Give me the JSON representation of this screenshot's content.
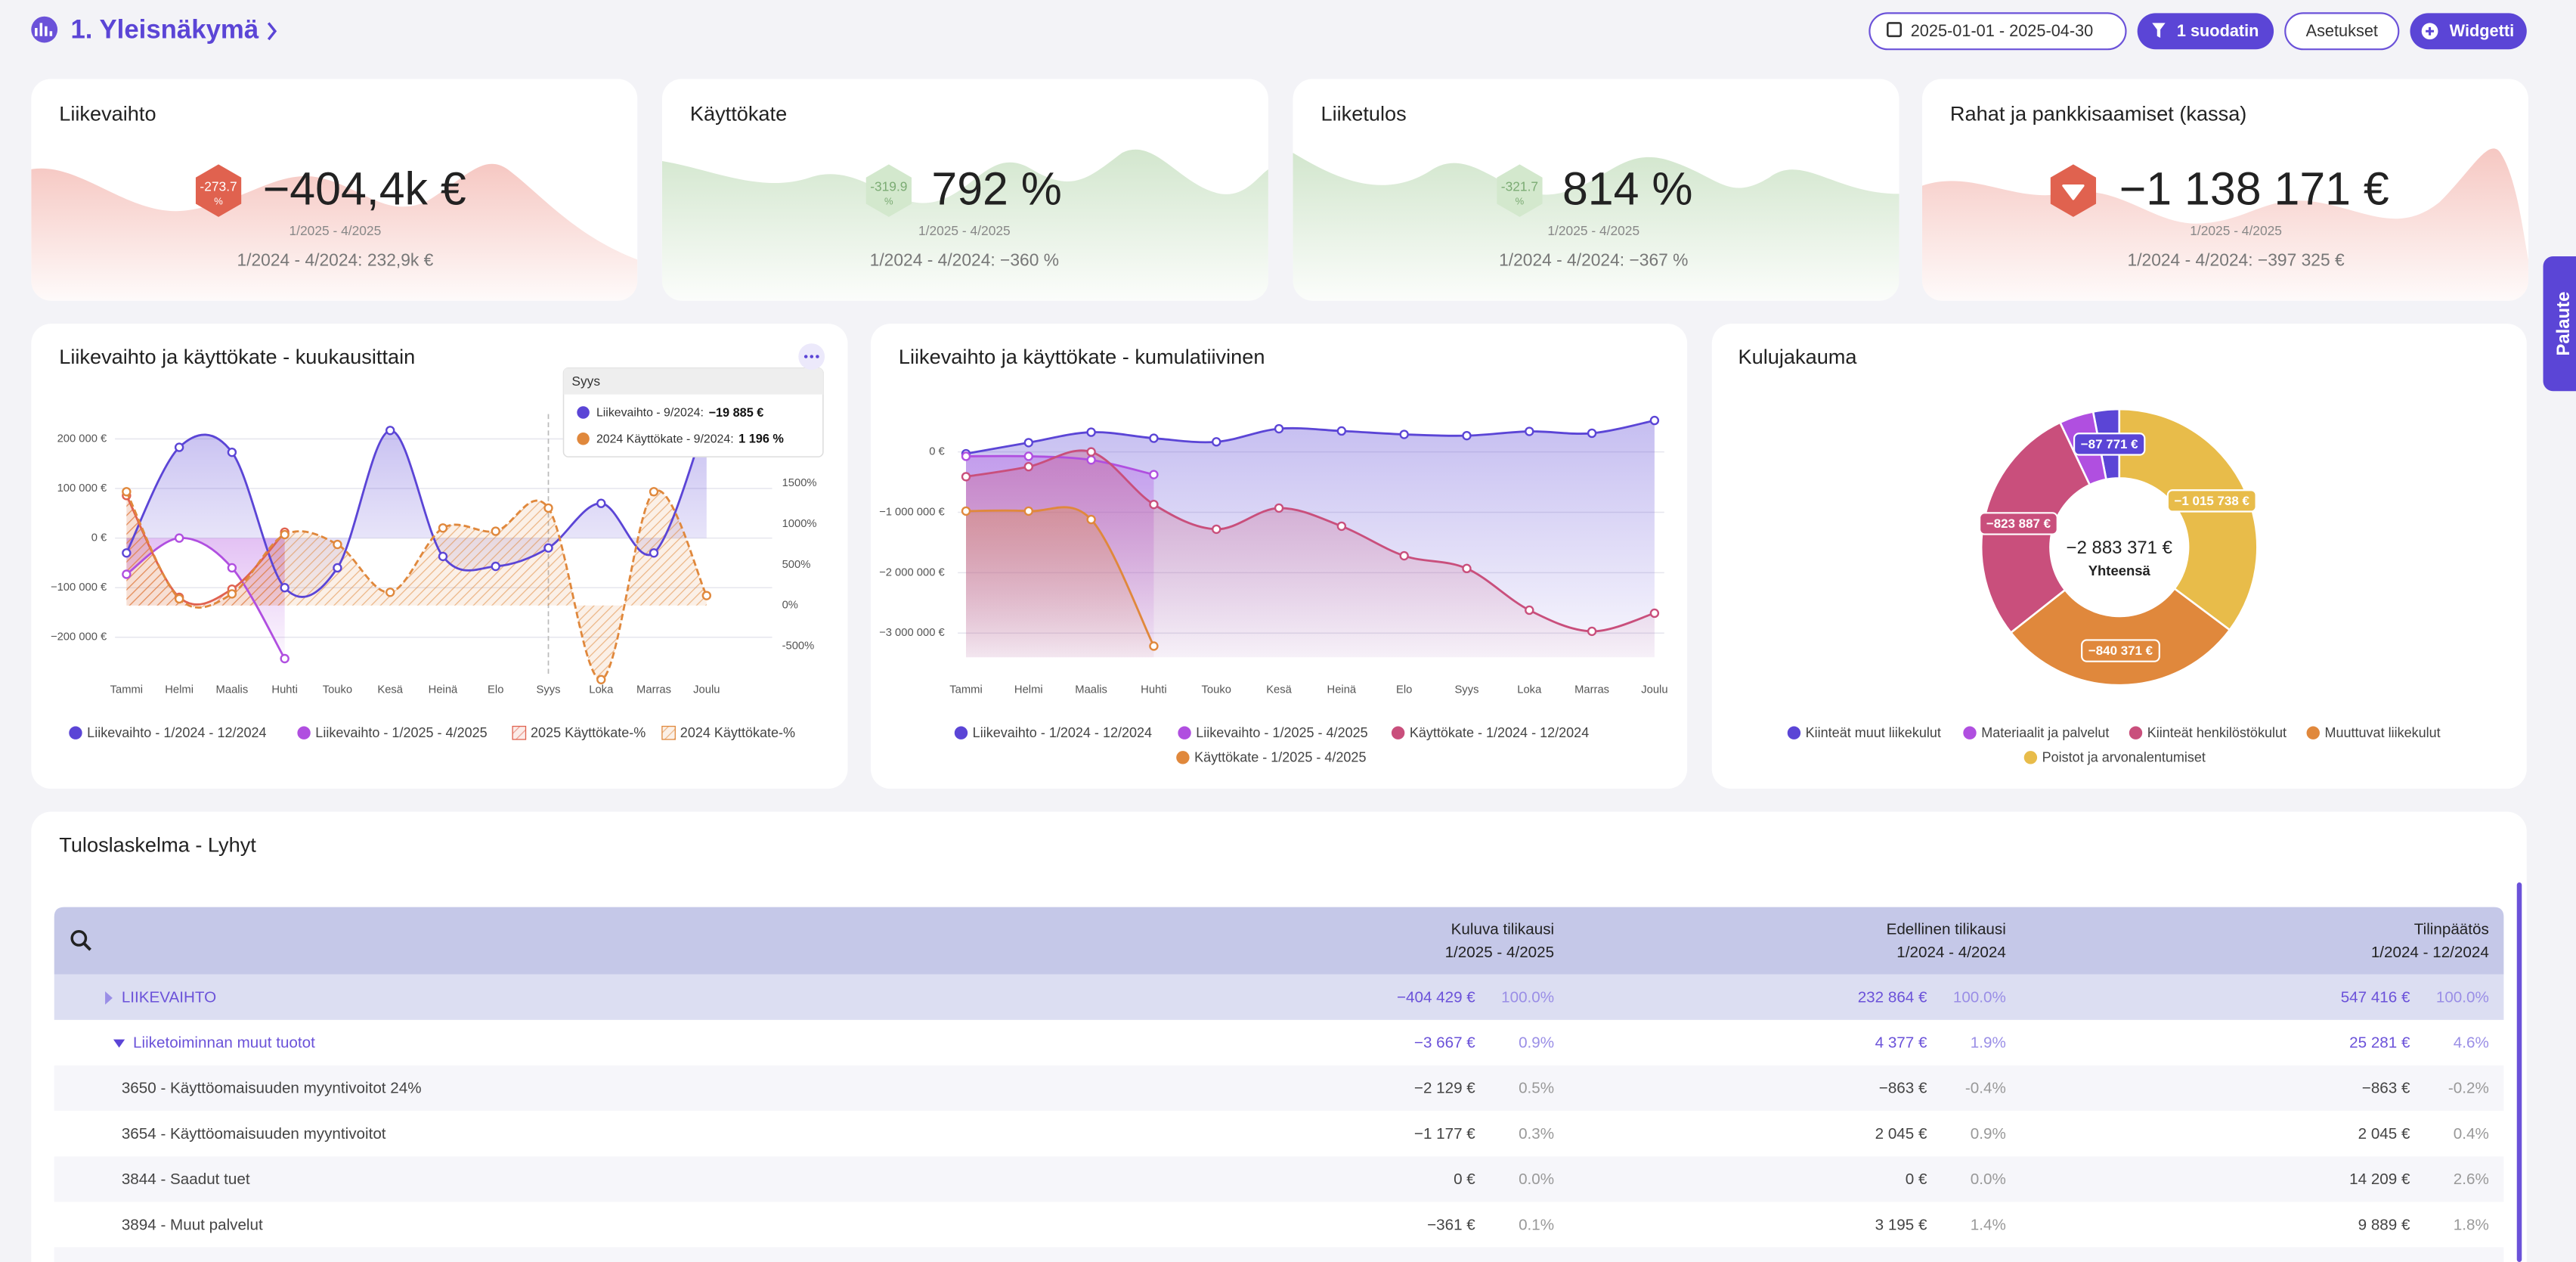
{
  "header": {
    "title": "1. Yleisnäkymä",
    "date_range": "2025-01-01 - 2025-04-30",
    "filter_button": "1 suodatin",
    "settings_button": "Asetukset",
    "widget_button": "Widgetti",
    "feedback_tab": "Palaute"
  },
  "kpi_cards": [
    {
      "title": "Liikevaihto",
      "badge": "-273.7",
      "badge_unit": "%",
      "value": "−404,4k €",
      "period": "1/2025 - 4/2025",
      "comparison": "1/2024 - 4/2024: 232,9k €",
      "color": "#f0a39a",
      "badge_color": "#e0624f",
      "badge_text_color": "#ffffff"
    },
    {
      "title": "Käyttökate",
      "badge": "-319.9",
      "badge_unit": "%",
      "value": "792 %",
      "period": "1/2025 - 4/2025",
      "comparison": "1/2024 - 4/2024: −360 %",
      "color": "#b5d6ad",
      "badge_color": "#d3e8cd",
      "badge_text_color": "#7bab73"
    },
    {
      "title": "Liiketulos",
      "badge": "-321.7",
      "badge_unit": "%",
      "value": "814 %",
      "period": "1/2025 - 4/2025",
      "comparison": "1/2024 - 4/2024: −367 %",
      "color": "#b5d6ad",
      "badge_color": "#d3e8cd",
      "badge_text_color": "#7bab73"
    },
    {
      "title": "Rahat ja pankkisaamiset (kassa)",
      "badge_icon": "arrow-down",
      "value": "−1 138 171 €",
      "period": "1/2025 - 4/2025",
      "comparison": "1/2024 - 4/2024: −397 325 €",
      "color": "#f0a39a",
      "badge_color": "#e0624f",
      "badge_text_color": "#ffffff"
    }
  ],
  "charts": [
    {
      "type": "line",
      "title": "Liikevaihto ja käyttökate - kuukausittain",
      "categories": [
        "Tammi",
        "Helmi",
        "Maalis",
        "Huhti",
        "Touko",
        "Kesä",
        "Heinä",
        "Elo",
        "Syys",
        "Loka",
        "Marras",
        "Joulu"
      ],
      "series": [
        {
          "name": "Liikevaihto - 1/2024 - 12/2024",
          "color": "#5b45d6",
          "values": [
            -30000,
            183000,
            173000,
            -100000,
            -60000,
            217000,
            -37000,
            -57000,
            -19885,
            70000,
            -30000,
            240000
          ]
        },
        {
          "name": "Liikevaihto - 1/2025 - 4/2025",
          "color": "#b04fe0",
          "values": [
            -73000,
            0,
            -60000,
            -243000,
            null,
            null,
            null,
            null,
            null,
            null,
            null,
            null
          ]
        },
        {
          "name": "2025 Käyttökate-%",
          "color": "#e0624f",
          "axis": "y2",
          "hatched": true,
          "values": [
            1350,
            100,
            200,
            900,
            null,
            null,
            null,
            null,
            null,
            null,
            null,
            null
          ]
        },
        {
          "name": "2024 Käyttökate-%",
          "color": "#e0883c",
          "axis": "y2",
          "hatched": true,
          "dashed": true,
          "values": [
            1397,
            81,
            142,
            870,
            749,
            162,
            951,
            911,
            1196,
            -911,
            1397,
            121
          ]
        }
      ],
      "ylim": [
        -300000,
        250000
      ],
      "yticks": [
        {
          "value": 200000,
          "label": "200 000 €"
        },
        {
          "value": 100000,
          "label": "100 000 €"
        },
        {
          "value": 0,
          "label": "0 €"
        },
        {
          "value": -100000,
          "label": "−100 000 €"
        },
        {
          "value": -200000,
          "label": "−200 000 €"
        }
      ],
      "y2lim": [
        -1000,
        2350
      ],
      "y2ticks": [
        {
          "value": 1500,
          "label": "1500%"
        },
        {
          "value": 1000,
          "label": "1000%"
        },
        {
          "value": 500,
          "label": "500%"
        },
        {
          "value": 0,
          "label": "0%"
        },
        {
          "value": -500,
          "label": "-500%"
        }
      ],
      "grid": true,
      "tooltip": {
        "title": "Syys",
        "rows": [
          {
            "label": "Liikevaihto - 9/2024:",
            "value": "−19 885 €",
            "color": "#5b45d6"
          },
          {
            "label": "2024 Käyttökate - 9/2024:",
            "value": "1 196 %",
            "color": "#e0883c"
          }
        ]
      }
    },
    {
      "type": "line",
      "title": "Liikevaihto ja käyttökate - kumulatiivinen",
      "categories": [
        "Tammi",
        "Helmi",
        "Maalis",
        "Huhti",
        "Touko",
        "Kesä",
        "Heinä",
        "Elo",
        "Syys",
        "Loka",
        "Marras",
        "Joulu"
      ],
      "series": [
        {
          "name": "Liikevaihto - 1/2024 - 12/2024",
          "color": "#5b45d6",
          "values": [
            -30000,
            153000,
            326000,
            226000,
            166000,
            383000,
            346000,
            289000,
            269000,
            339000,
            309000,
            520000
          ]
        },
        {
          "name": "Liikevaihto - 1/2025 - 4/2025",
          "color": "#b04fe0",
          "values": [
            -73000,
            -73000,
            -133000,
            -376000,
            null,
            null,
            null,
            null,
            null,
            null,
            null,
            null
          ]
        },
        {
          "name": "Käyttökate - 1/2024 - 12/2024",
          "color": "#c94f7c",
          "values": [
            -410000,
            -245000,
            0,
            -870000,
            -1280000,
            -930000,
            -1230000,
            -1720000,
            -1930000,
            -2620000,
            -2970000,
            -2670000
          ]
        },
        {
          "name": "Käyttökate - 1/2025 - 4/2025",
          "color": "#e0883c",
          "values": [
            -980000,
            -980000,
            -1120000,
            -3215000,
            null,
            null,
            null,
            null,
            null,
            null,
            null,
            null
          ]
        }
      ],
      "ylim": [
        -3400000,
        680000
      ],
      "yticks": [
        {
          "value": 0,
          "label": "0 €"
        },
        {
          "value": -1000000,
          "label": "−1 000 000 €"
        },
        {
          "value": -2000000,
          "label": "−2 000 000 €"
        },
        {
          "value": -3000000,
          "label": "−3 000 000 €"
        }
      ],
      "grid": true
    },
    {
      "type": "donut",
      "title": "Kulujakauma",
      "total_label": "−2 883 371 €",
      "total_caption": "Yhteensä",
      "categories": [
        "Kiinteät muut liikekulut",
        "Materiaalit ja palvelut",
        "Kiinteät henkilöstökulut",
        "Muuttuvat liikekulut",
        "Poistot ja arvonalentumiset"
      ],
      "values": [
        -87771,
        -115604,
        -823887,
        -840371,
        -1015738
      ],
      "value_labels": [
        "−87 771 €",
        null,
        "−823 887 €",
        "−840 371 €",
        "−1 015 738 €"
      ],
      "colors": [
        "#5b45d6",
        "#b04fe0",
        "#c94f7c",
        "#e0883c",
        "#e8bc4a"
      ]
    }
  ],
  "table": {
    "title": "Tuloslaskelma - Lyhyt",
    "columns": [
      {
        "name": "Kuluva tilikausi",
        "period": "1/2025 - 4/2025"
      },
      {
        "name": "Edellinen tilikausi",
        "period": "1/2024 - 4/2024"
      },
      {
        "name": "Tilinpäätös",
        "period": "1/2024 - 12/2024"
      }
    ],
    "rows": [
      {
        "label": "LIIKEVAIHTO",
        "style": "group",
        "cells": [
          "−404 429 €",
          "100.0%",
          "232 864 €",
          "100.0%",
          "547 416 €",
          "100.0%"
        ]
      },
      {
        "label": "Liiketoiminnan muut tuotot",
        "style": "subgroup",
        "cells": [
          "−3 667 €",
          "0.9%",
          "4 377 €",
          "1.9%",
          "25 281 €",
          "4.6%"
        ]
      },
      {
        "label": "3650 - Käyttöomaisuuden myyntivoitot 24%",
        "style": "account",
        "cells": [
          "−2 129 €",
          "0.5%",
          "−863 €",
          "-0.4%",
          "−863 €",
          "-0.2%"
        ]
      },
      {
        "label": "3654 - Käyttöomaisuuden myyntivoitot",
        "style": "account",
        "cells": [
          "−1 177 €",
          "0.3%",
          "2 045 €",
          "0.9%",
          "2 045 €",
          "0.4%"
        ]
      },
      {
        "label": "3844 - Saadut tuet",
        "style": "account",
        "cells": [
          "0 €",
          "0.0%",
          "0 €",
          "0.0%",
          "14 209 €",
          "2.6%"
        ]
      },
      {
        "label": "3894 - Muut palvelut",
        "style": "account",
        "cells": [
          "−361 €",
          "0.1%",
          "3 195 €",
          "1.4%",
          "9 889 €",
          "1.8%"
        ]
      }
    ]
  }
}
